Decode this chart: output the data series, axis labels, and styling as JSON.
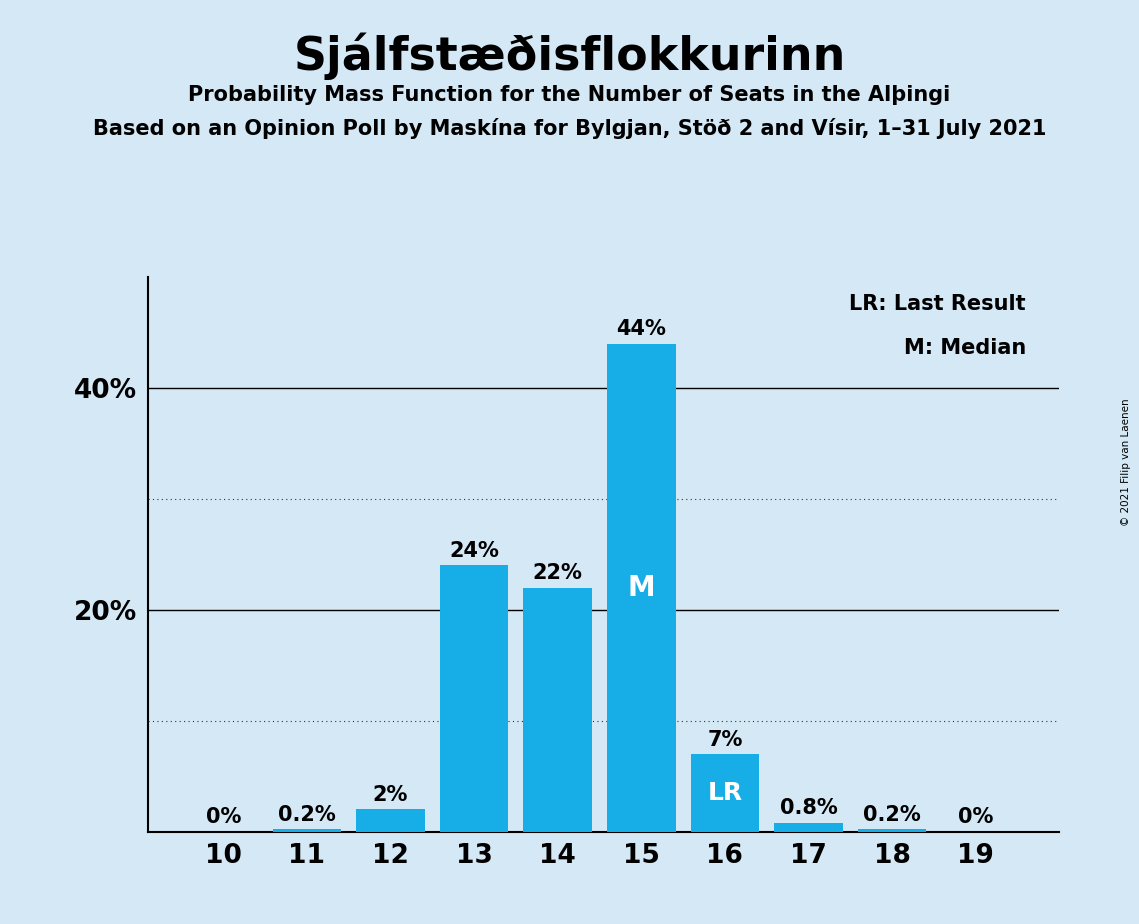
{
  "title": "Sjálfstæðisflokkurinn",
  "subtitle1": "Probability Mass Function for the Number of Seats in the Alþingi",
  "subtitle2": "Based on an Opinion Poll by Maskína for Bylgjan, Stöð 2 and Vísir, 1–31 July 2021",
  "copyright": "© 2021 Filip van Laenen",
  "seats": [
    10,
    11,
    12,
    13,
    14,
    15,
    16,
    17,
    18,
    19
  ],
  "probabilities": [
    0.0,
    0.2,
    2.0,
    24.0,
    22.0,
    44.0,
    7.0,
    0.8,
    0.2,
    0.0
  ],
  "prob_labels": [
    "0%",
    "0.2%",
    "2%",
    "24%",
    "22%",
    "44%",
    "7%",
    "0.8%",
    "0.2%",
    "0%"
  ],
  "bar_color": "#17aee8",
  "background_color": "#d4e8f5",
  "median_seat": 15,
  "last_result_seat": 16,
  "legend_lr": "LR: Last Result",
  "legend_m": "M: Median",
  "dotted_gridlines": [
    10,
    30
  ],
  "solid_gridlines": [
    20,
    40
  ],
  "ylim": [
    0,
    50
  ]
}
